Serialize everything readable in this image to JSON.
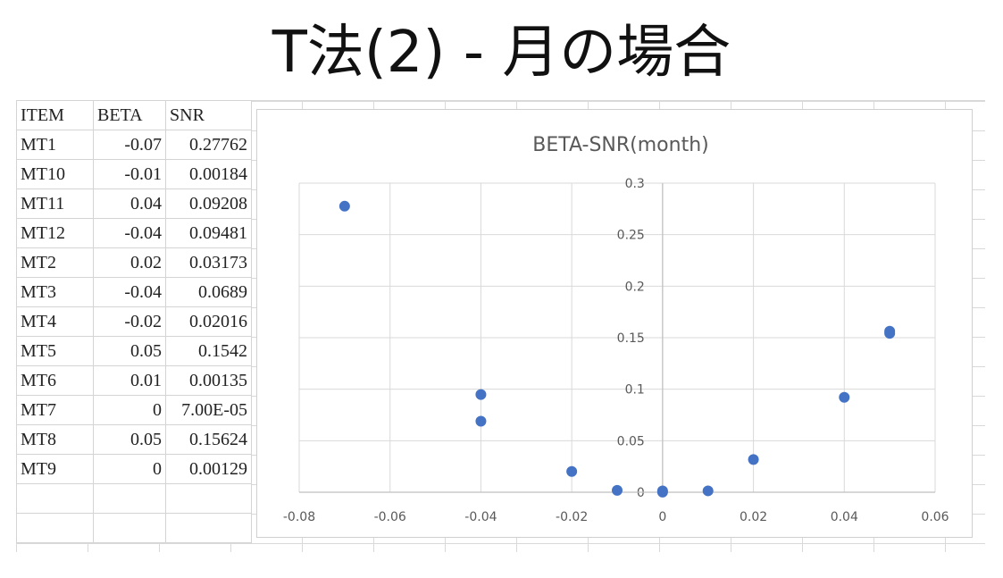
{
  "slide": {
    "title": "T法(2) - 月の場合"
  },
  "table": {
    "headers": [
      "ITEM",
      "BETA",
      "SNR"
    ],
    "rows": [
      {
        "item": "MT1",
        "beta": "-0.07",
        "snr": "0.27762"
      },
      {
        "item": "MT10",
        "beta": "-0.01",
        "snr": "0.00184"
      },
      {
        "item": "MT11",
        "beta": "0.04",
        "snr": "0.09208"
      },
      {
        "item": "MT12",
        "beta": "-0.04",
        "snr": "0.09481"
      },
      {
        "item": "MT2",
        "beta": "0.02",
        "snr": "0.03173"
      },
      {
        "item": "MT3",
        "beta": "-0.04",
        "snr": "0.0689"
      },
      {
        "item": "MT4",
        "beta": "-0.02",
        "snr": "0.02016"
      },
      {
        "item": "MT5",
        "beta": "0.05",
        "snr": "0.1542"
      },
      {
        "item": "MT6",
        "beta": "0.01",
        "snr": "0.00135"
      },
      {
        "item": "MT7",
        "beta": "0",
        "snr": "7.00E-05"
      },
      {
        "item": "MT8",
        "beta": "0.05",
        "snr": "0.15624"
      },
      {
        "item": "MT9",
        "beta": "0",
        "snr": "0.00129"
      }
    ]
  },
  "chart_data": {
    "type": "scatter",
    "title": "BETA-SNR(month)",
    "xlabel": "",
    "ylabel": "",
    "xlim": [
      -0.08,
      0.06
    ],
    "ylim": [
      0,
      0.3
    ],
    "x_ticks": [
      "-0.08",
      "-0.06",
      "-0.04",
      "-0.02",
      "0",
      "0.02",
      "0.04",
      "0.06"
    ],
    "y_ticks": [
      "0",
      "0.05",
      "0.1",
      "0.15",
      "0.2",
      "0.25",
      "0.3"
    ],
    "grid": true,
    "marker_color": "#4472c4",
    "points": [
      {
        "x": -0.07,
        "y": 0.27762
      },
      {
        "x": -0.01,
        "y": 0.00184
      },
      {
        "x": 0.04,
        "y": 0.09208
      },
      {
        "x": -0.04,
        "y": 0.09481
      },
      {
        "x": 0.02,
        "y": 0.03173
      },
      {
        "x": -0.04,
        "y": 0.0689
      },
      {
        "x": -0.02,
        "y": 0.02016
      },
      {
        "x": 0.05,
        "y": 0.1542
      },
      {
        "x": 0.01,
        "y": 0.00135
      },
      {
        "x": 0,
        "y": 7e-05
      },
      {
        "x": 0.05,
        "y": 0.15624
      },
      {
        "x": 0,
        "y": 0.00129
      }
    ]
  }
}
